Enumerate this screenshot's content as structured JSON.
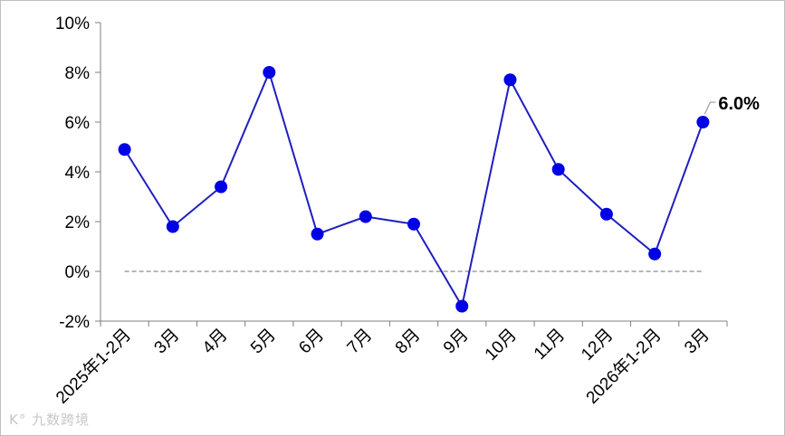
{
  "chart_data": {
    "type": "line",
    "categories": [
      "2025年1-2月",
      "3月",
      "4月",
      "5月",
      "6月",
      "7月",
      "8月",
      "9月",
      "10月",
      "11月",
      "12月",
      "2026年1-2月",
      "3月"
    ],
    "series": [
      {
        "values": [
          4.9,
          1.8,
          3.4,
          8.0,
          1.5,
          2.2,
          1.9,
          -1.4,
          7.7,
          4.1,
          2.3,
          0.7,
          6.0
        ]
      }
    ],
    "ylim": [
      -2,
      10
    ],
    "yticks": [
      -2,
      0,
      2,
      4,
      6,
      8,
      10
    ],
    "ytick_labels": [
      "-2%",
      "0%",
      "2%",
      "4%",
      "6%",
      "8%",
      "10%"
    ],
    "xlabel": "",
    "ylabel": "",
    "annotation": {
      "index": 12,
      "text": "6.0%"
    },
    "baseline": 0,
    "grid": false,
    "colors": {
      "line": "#1f1fbf",
      "marker": "#0000e6",
      "baseline": "#8c8c8c",
      "axis": "#7f7f7f"
    }
  },
  "watermark": "K° 九数跨境"
}
